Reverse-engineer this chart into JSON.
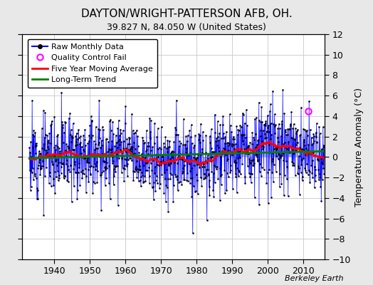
{
  "title": "DAYTON/WRIGHT-PATTERSON AFB, OH.",
  "subtitle": "39.827 N, 84.050 W (United States)",
  "ylabel": "Temperature Anomaly (°C)",
  "berkeley_earth_text": "Berkeley Earth",
  "xlim": [
    1931,
    2016
  ],
  "ylim": [
    -10,
    12
  ],
  "yticks": [
    -10,
    -8,
    -6,
    -4,
    -2,
    0,
    2,
    4,
    6,
    8,
    10,
    12
  ],
  "xticks": [
    1940,
    1950,
    1960,
    1970,
    1980,
    1990,
    2000,
    2010
  ],
  "figure_bg": "#e8e8e8",
  "plot_bg": "#ffffff",
  "grid_color": "#c8c8c8",
  "raw_line_color": "blue",
  "raw_marker_color": "black",
  "moving_avg_color": "red",
  "trend_color": "green",
  "qc_fail_color": "magenta",
  "stem_color": "#6666ff",
  "seed": 12,
  "n_years": 83,
  "start_year": 1933,
  "qc_year": 2011.5,
  "qc_val": 4.5,
  "title_fontsize": 11,
  "subtitle_fontsize": 9,
  "tick_fontsize": 9,
  "legend_fontsize": 8
}
